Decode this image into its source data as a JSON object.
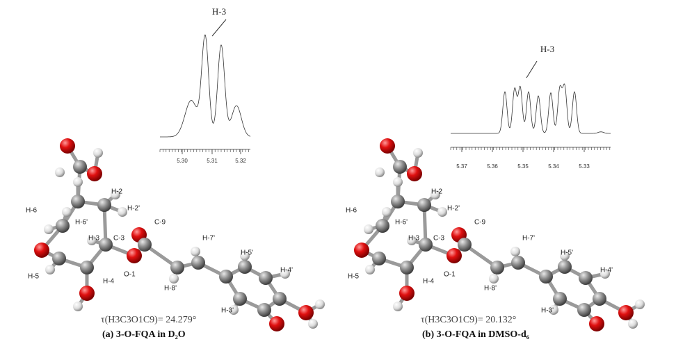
{
  "panels": [
    {
      "spectrum": {
        "peak_label": "H-3",
        "ticks": [
          "5.30",
          "5.31",
          "5.32"
        ]
      },
      "atom_labels": [
        "H-6",
        "H-6'",
        "H-2",
        "H-2'",
        "H-3",
        "C-3",
        "C-9",
        "H-7'",
        "H-5'",
        "H-4'",
        "O-1",
        "H-8'",
        "H-3'",
        "H-5",
        "H-4"
      ],
      "torsion": "τ(H3C3O1C9)= 24.279°",
      "caption": "(a) 3-O-FQA in D₂O"
    },
    {
      "spectrum": {
        "peak_label": "H-3",
        "ticks": [
          "5.37",
          "5.36",
          "5.35",
          "5.34",
          "5.33"
        ]
      },
      "atom_labels": [
        "H-6",
        "H-6'",
        "H-2",
        "H-2'",
        "H-3",
        "C-3",
        "C-9",
        "H-7'",
        "H-5'",
        "H-4'",
        "O-1",
        "H-8'",
        "H-3'",
        "H-5",
        "H-4"
      ],
      "torsion": "τ(H3C3O1C9)= 20.132°",
      "caption": "(b) 3-O-FQA in DMSO-d₆"
    }
  ]
}
